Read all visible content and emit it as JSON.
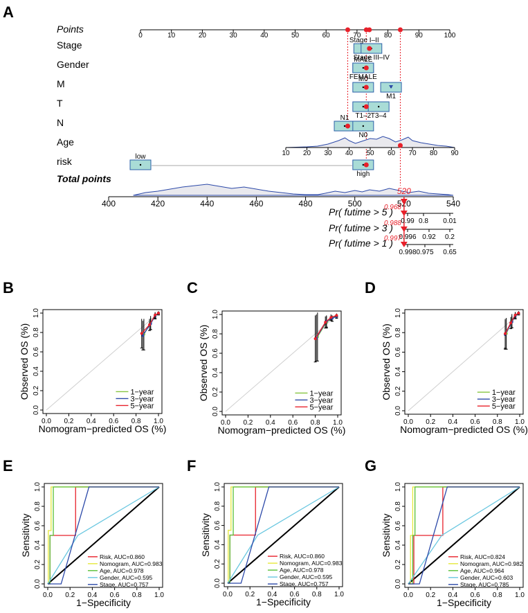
{
  "chart_data": [
    {
      "id": "A",
      "type": "nomogram",
      "panel_label": "A",
      "points_label": "Points",
      "points_scale": [
        0,
        10,
        20,
        30,
        40,
        50,
        60,
        70,
        80,
        90,
        100
      ],
      "rows": [
        {
          "label": "Stage",
          "boxes": [
            {
              "name": "Stage I–II",
              "pos": 73,
              "label_pos": "above"
            },
            {
              "name": "Stage III–IV",
              "pos": 74,
              "label_pos": "below"
            }
          ]
        },
        {
          "label": "Gender",
          "boxes": [
            {
              "name": "MALE",
              "pos": 72,
              "label_pos": "above"
            },
            {
              "name": "FEMALE",
              "pos": 72,
              "label_pos": "below"
            }
          ]
        },
        {
          "label": "M",
          "boxes": [
            {
              "name": "M0",
              "pos": 72,
              "label_pos": "above"
            },
            {
              "name": "M1",
              "pos": 81,
              "label_pos": "below"
            }
          ]
        },
        {
          "label": "T",
          "boxes": [
            {
              "name": "T1–2",
              "pos": 72,
              "label_pos": "below"
            },
            {
              "name": "T3–4",
              "pos": 77,
              "label_pos": "below"
            }
          ]
        },
        {
          "label": "N",
          "boxes": [
            {
              "name": "N1",
              "pos": 66,
              "label_pos": "above"
            },
            {
              "name": "N0",
              "pos": 72,
              "label_pos": "below"
            }
          ]
        },
        {
          "label": "Age",
          "axis": [
            10,
            20,
            30,
            40,
            50,
            60,
            70,
            80,
            90
          ]
        },
        {
          "label": "risk",
          "boxes": [
            {
              "name": "low",
              "pos": 0,
              "label_pos": "above"
            },
            {
              "name": "high",
              "pos": 72,
              "label_pos": "below"
            }
          ]
        }
      ],
      "total_points_label": "Total points",
      "total_points_scale": [
        400,
        420,
        440,
        460,
        480,
        500,
        520,
        540
      ],
      "total_marker": "520",
      "probabilities": [
        {
          "label": "Pr( futime > 5 )",
          "marker": "0.968",
          "ticks": [
            "0.99",
            "0.8",
            "0.01"
          ]
        },
        {
          "label": "Pr( futime > 3 )",
          "marker": "0.988",
          "ticks": [
            "0.996",
            "0.92",
            "0.2"
          ]
        },
        {
          "label": "Pr( futime > 1 )",
          "marker": "0.997",
          "ticks": [
            "0.998",
            "0.975",
            "0.65"
          ]
        }
      ]
    },
    {
      "id": "B",
      "type": "line",
      "panel_label": "B",
      "xlabel": "Nomogram−predicted OS (%)",
      "ylabel": "Observed OS (%)",
      "xticks": [
        "0.0",
        "0.2",
        "0.4",
        "0.6",
        "0.8",
        "1.0"
      ],
      "yticks": [
        "0.0",
        "0.2",
        "0.4",
        "0.6",
        "0.8",
        "1.0"
      ],
      "xlim": [
        0,
        1
      ],
      "ylim": [
        0,
        1
      ],
      "series": [
        {
          "name": "1−year",
          "color": "#86c440",
          "x": [
            0.87,
            0.93,
            0.97,
            1.0
          ],
          "y": [
            0.78,
            0.9,
            0.97,
            1.0
          ],
          "err": [
            0.16,
            0.07,
            0.03,
            0.02
          ]
        },
        {
          "name": "3−year",
          "color": "#2b48a8",
          "x": [
            0.86,
            0.93,
            0.97,
            1.0
          ],
          "y": [
            0.77,
            0.89,
            0.97,
            1.0
          ],
          "err": [
            0.15,
            0.06,
            0.03,
            0.01
          ]
        },
        {
          "name": "5−year",
          "color": "#e8202a",
          "x": [
            0.85,
            0.92,
            0.97,
            1.0
          ],
          "y": [
            0.79,
            0.88,
            0.98,
            1.0
          ],
          "err": [
            0.15,
            0.06,
            0.03,
            0.01
          ]
        }
      ]
    },
    {
      "id": "C",
      "type": "line",
      "panel_label": "C",
      "xlabel": "Nomogram−predicted OS (%)",
      "ylabel": "Observed OS (%)",
      "xticks": [
        "0.0",
        "0.2",
        "0.4",
        "0.6",
        "0.8",
        "1.0"
      ],
      "yticks": [
        "0.0",
        "0.2",
        "0.4",
        "0.6",
        "0.8",
        "1.0"
      ],
      "xlim": [
        0,
        1
      ],
      "ylim": [
        0,
        1
      ],
      "series": [
        {
          "name": "1−year",
          "color": "#86c440",
          "x": [
            0.82,
            0.9,
            0.95,
            0.99
          ],
          "y": [
            0.77,
            0.92,
            0.96,
            0.99
          ],
          "err": [
            0.25,
            0.06,
            0.03,
            0.02
          ]
        },
        {
          "name": "3−year",
          "color": "#2b48a8",
          "x": [
            0.81,
            0.9,
            0.95,
            0.99
          ],
          "y": [
            0.76,
            0.93,
            0.96,
            0.98
          ],
          "err": [
            0.24,
            0.06,
            0.03,
            0.02
          ]
        },
        {
          "name": "5−year",
          "color": "#e8202a",
          "x": [
            0.8,
            0.89,
            0.94,
            0.99
          ],
          "y": [
            0.75,
            0.92,
            0.97,
            0.99
          ],
          "err": [
            0.24,
            0.06,
            0.03,
            0.01
          ]
        }
      ]
    },
    {
      "id": "D",
      "type": "line",
      "panel_label": "D",
      "xlabel": "Nomogram−predicted OS (%)",
      "ylabel": "Observed OS (%)",
      "xticks": [
        "0.0",
        "0.2",
        "0.4",
        "0.6",
        "0.8",
        "1.0"
      ],
      "yticks": [
        "0.0",
        "0.2",
        "0.4",
        "0.6",
        "0.8",
        "1.0"
      ],
      "xlim": [
        0,
        1
      ],
      "ylim": [
        0,
        1
      ],
      "series": [
        {
          "name": "1−year",
          "color": "#86c440",
          "x": [
            0.88,
            0.93,
            0.96,
            0.99
          ],
          "y": [
            0.79,
            0.92,
            0.98,
            1.0
          ],
          "err": [
            0.16,
            0.07,
            0.03,
            0.02
          ]
        },
        {
          "name": "3−year",
          "color": "#2b48a8",
          "x": [
            0.87,
            0.93,
            0.96,
            0.99
          ],
          "y": [
            0.78,
            0.91,
            0.97,
            1.0
          ],
          "err": [
            0.15,
            0.06,
            0.03,
            0.01
          ]
        },
        {
          "name": "5−year",
          "color": "#e8202a",
          "x": [
            0.87,
            0.92,
            0.96,
            0.99
          ],
          "y": [
            0.79,
            0.9,
            0.98,
            1.0
          ],
          "err": [
            0.15,
            0.06,
            0.03,
            0.01
          ]
        }
      ]
    },
    {
      "id": "E",
      "type": "line",
      "panel_label": "E",
      "xlabel": "1−Specificity",
      "ylabel": "Sensitivity",
      "xticks": [
        "0.0",
        "0.2",
        "0.4",
        "0.6",
        "0.8",
        "1.0"
      ],
      "yticks": [
        "0.0",
        "0.2",
        "0.4",
        "0.6",
        "0.8",
        "1.0"
      ],
      "xlim": [
        0,
        1
      ],
      "ylim": [
        0,
        1
      ],
      "series": [
        {
          "name": "Risk, AUC=0.860",
          "color": "#e8202a",
          "x": [
            0,
            0.02,
            0.02,
            0.25,
            0.25,
            1
          ],
          "y": [
            0,
            0,
            0.5,
            0.5,
            1,
            1
          ]
        },
        {
          "name": "Nomogram, AUC=0.983",
          "color": "#e6e83a",
          "x": [
            0,
            0.005,
            0.005,
            0.03,
            0.03,
            1
          ],
          "y": [
            0,
            0,
            0.55,
            0.55,
            1,
            1
          ]
        },
        {
          "name": "Age, AUC=0.978",
          "color": "#57c035",
          "x": [
            0,
            0.02,
            0.02,
            0.05,
            0.05,
            1
          ],
          "y": [
            0,
            0,
            0.5,
            0.5,
            1,
            1
          ]
        },
        {
          "name": "Gender, AUC=0.595",
          "color": "#69c7e0",
          "x": [
            0,
            0.27,
            1
          ],
          "y": [
            0,
            0.5,
            1
          ]
        },
        {
          "name": "Stage, AUC=0.757",
          "color": "#2b48a8",
          "x": [
            0,
            0.12,
            0.37,
            1
          ],
          "y": [
            0,
            0,
            1,
            1
          ]
        }
      ]
    },
    {
      "id": "F",
      "type": "line",
      "panel_label": "F",
      "xlabel": "1−Specificity",
      "ylabel": "Sensitivity",
      "xticks": [
        "0.0",
        "0.2",
        "0.4",
        "0.6",
        "0.8",
        "1.0"
      ],
      "yticks": [
        "0.0",
        "0.2",
        "0.4",
        "0.6",
        "0.8",
        "1.0"
      ],
      "xlim": [
        0,
        1
      ],
      "ylim": [
        0,
        1
      ],
      "series": [
        {
          "name": "Risk, AUC=0.860",
          "color": "#e8202a",
          "x": [
            0,
            0.02,
            0.02,
            0.25,
            0.25,
            1
          ],
          "y": [
            0,
            0,
            0.5,
            0.5,
            1,
            1
          ]
        },
        {
          "name": "Nomogram, AUC=0.983",
          "color": "#e6e83a",
          "x": [
            0,
            0.005,
            0.005,
            0.03,
            0.03,
            1
          ],
          "y": [
            0,
            0,
            0.55,
            0.55,
            1,
            1
          ]
        },
        {
          "name": "Age, AUC=0.978",
          "color": "#57c035",
          "x": [
            0,
            0.02,
            0.02,
            0.05,
            0.05,
            1
          ],
          "y": [
            0,
            0,
            0.5,
            0.5,
            1,
            1
          ]
        },
        {
          "name": "Gender, AUC=0.595",
          "color": "#69c7e0",
          "x": [
            0,
            0.27,
            1
          ],
          "y": [
            0,
            0.5,
            1
          ]
        },
        {
          "name": "Stage, AUC=0.757",
          "color": "#2b48a8",
          "x": [
            0,
            0.12,
            0.37,
            1
          ],
          "y": [
            0,
            0,
            1,
            1
          ]
        }
      ]
    },
    {
      "id": "G",
      "type": "line",
      "panel_label": "G",
      "xlabel": "1−Specificity",
      "ylabel": "Sensitivity",
      "xticks": [
        "0.0",
        "0.2",
        "0.4",
        "0.6",
        "0.8",
        "1.0"
      ],
      "yticks": [
        "0.0",
        "0.2",
        "0.4",
        "0.6",
        "0.8",
        "1.0"
      ],
      "xlim": [
        0,
        1
      ],
      "ylim": [
        0,
        1
      ],
      "series": [
        {
          "name": "Risk, AUC=0.824",
          "color": "#e8202a",
          "x": [
            0,
            0.05,
            0.05,
            0.31,
            0.31,
            1
          ],
          "y": [
            0,
            0,
            0.5,
            0.5,
            1,
            1
          ]
        },
        {
          "name": "Nomogram, AUC=0.982",
          "color": "#e6e83a",
          "x": [
            0,
            0.02,
            0.02,
            0.04,
            0.04,
            1
          ],
          "y": [
            0,
            0,
            0.5,
            0.5,
            1,
            1
          ]
        },
        {
          "name": "Age, AUC=0.964",
          "color": "#57c035",
          "x": [
            0,
            0.04,
            0.04,
            0.06,
            0.06,
            1
          ],
          "y": [
            0,
            0,
            0.5,
            0.5,
            1,
            1
          ]
        },
        {
          "name": "Gender, AUC=0.603",
          "color": "#69c7e0",
          "x": [
            0,
            0.3,
            1
          ],
          "y": [
            0,
            0.5,
            1
          ]
        },
        {
          "name": "Stage, AUC=0.785",
          "color": "#2b48a8",
          "x": [
            0,
            0.1,
            0.35,
            1
          ],
          "y": [
            0,
            0,
            1,
            1
          ]
        }
      ]
    }
  ]
}
